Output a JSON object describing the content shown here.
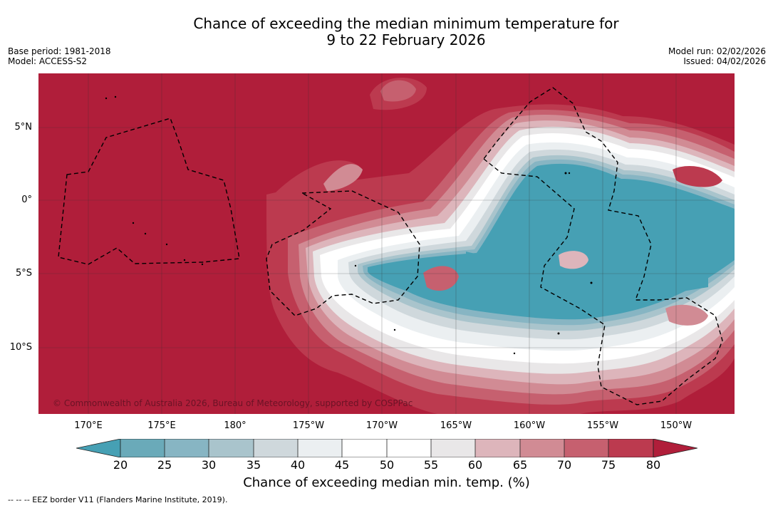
{
  "title_line1": "Chance of exceeding the median minimum temperature for",
  "title_line2": "9 to 22 February 2026",
  "base_period": "Base period: 1981-2018",
  "model": "Model: ACCESS-S2",
  "model_run": "Model run: 02/02/2026",
  "issued": "Issued: 04/02/2026",
  "copyright": "© Commonwealth of Australia 2026, Bureau of Meteorology, supported by COSPPac",
  "footnote": "--  --  -- EEZ border V11 (Flanders Marine Institute, 2019).",
  "colors": {
    "c_lt20": "#46a0b4",
    "c20": "#6aaab9",
    "c25": "#87b5c3",
    "c30": "#a9c4cc",
    "c35": "#cfd8dc",
    "c40": "#ebeff1",
    "c45": "#ffffff",
    "c50": "#ffffff",
    "c55": "#e9e7e8",
    "c60": "#ddb5bb",
    "c65": "#d18b94",
    "c70": "#c6606f",
    "c75": "#bc3a4f",
    "c80": "#b01e3a"
  },
  "chart_data": {
    "type": "map",
    "variable": "Chance of exceeding median min. temp. (%)",
    "lon_ticks": [
      "170°E",
      "175°E",
      "180°",
      "175°W",
      "170°W",
      "165°W",
      "160°W",
      "155°W",
      "150°W"
    ],
    "lat_ticks": [
      "5°N",
      "0°",
      "5°S",
      "10°S"
    ],
    "colorbar": {
      "ticks": [
        "20",
        "25",
        "30",
        "35",
        "40",
        "45",
        "50",
        "55",
        "60",
        "65",
        "70",
        "75",
        "80"
      ],
      "label": "Chance of exceeding median min. temp. (%)"
    },
    "regions": [
      {
        "name": "above-80-background",
        "value": ">80"
      },
      {
        "name": "central-below-20",
        "value": "<20"
      },
      {
        "name": "near-median-band",
        "value": "40-60"
      }
    ]
  }
}
